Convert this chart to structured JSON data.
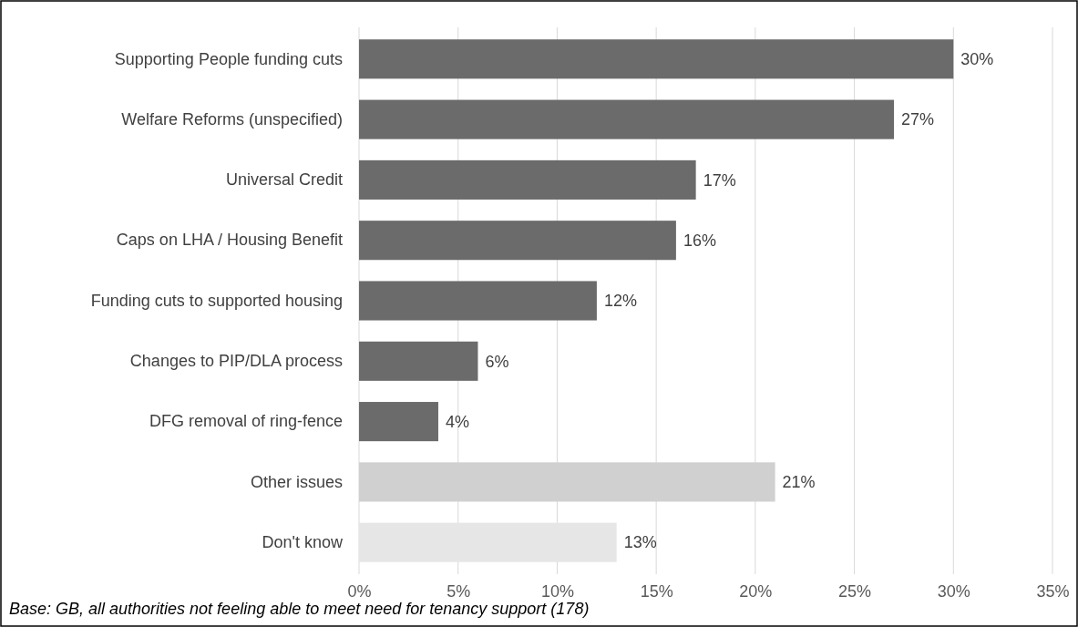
{
  "chart_data": {
    "type": "bar",
    "orientation": "horizontal",
    "categories": [
      "Supporting People funding cuts",
      "Welfare Reforms (unspecified)",
      "Universal Credit",
      "Caps on LHA / Housing Benefit",
      "Funding cuts to supported housing",
      "Changes to PIP/DLA process",
      "DFG removal of ring-fence",
      "Other issues",
      "Don't know"
    ],
    "values": [
      30,
      27,
      17,
      16,
      12,
      6,
      4,
      21,
      13
    ],
    "colors": [
      "#6b6b6b",
      "#6b6b6b",
      "#6b6b6b",
      "#6b6b6b",
      "#6b6b6b",
      "#6b6b6b",
      "#6b6b6b",
      "#d0d0d0",
      "#e6e6e6"
    ],
    "value_labels": [
      "30%",
      "27%",
      "17%",
      "16%",
      "12%",
      "6%",
      "4%",
      "21%",
      "13%"
    ],
    "xlim": [
      0,
      35
    ],
    "xticks": [
      {
        "value": 0,
        "label": "0%"
      },
      {
        "value": 5,
        "label": "5%"
      },
      {
        "value": 10,
        "label": "10%"
      },
      {
        "value": 15,
        "label": "15%"
      },
      {
        "value": 20,
        "label": "20%"
      },
      {
        "value": 25,
        "label": "25%"
      },
      {
        "value": 30,
        "label": "30%"
      },
      {
        "value": 35,
        "label": "35%"
      }
    ],
    "grid": "x",
    "annotations": [
      "Base: GB, all authorities not feeling able to meet need for tenancy support (178)"
    ]
  }
}
